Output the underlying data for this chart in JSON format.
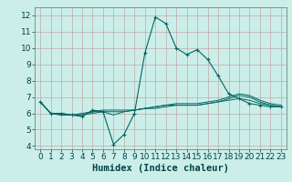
{
  "title": "",
  "xlabel": "Humidex (Indice chaleur)",
  "background_color": "#cceee8",
  "grid_color": "#c0a8a8",
  "line_color": "#006666",
  "xlim": [
    -0.5,
    23.5
  ],
  "ylim": [
    3.8,
    12.5
  ],
  "yticks": [
    4,
    5,
    6,
    7,
    8,
    9,
    10,
    11,
    12
  ],
  "xticks": [
    0,
    1,
    2,
    3,
    4,
    5,
    6,
    7,
    8,
    9,
    10,
    11,
    12,
    13,
    14,
    15,
    16,
    17,
    18,
    19,
    20,
    21,
    22,
    23
  ],
  "series": [
    [
      6.7,
      6.0,
      6.0,
      5.9,
      5.8,
      6.2,
      6.1,
      4.1,
      4.7,
      6.0,
      9.7,
      11.9,
      11.5,
      10.0,
      9.6,
      9.9,
      9.3,
      8.3,
      7.2,
      6.9,
      6.6,
      6.5,
      6.4,
      6.4
    ],
    [
      6.7,
      6.0,
      6.0,
      5.9,
      5.9,
      6.1,
      6.1,
      5.9,
      6.1,
      6.2,
      6.3,
      6.4,
      6.5,
      6.5,
      6.5,
      6.5,
      6.6,
      6.7,
      6.8,
      6.9,
      6.8,
      6.6,
      6.5,
      6.4
    ],
    [
      6.7,
      6.0,
      5.9,
      5.9,
      5.9,
      6.0,
      6.1,
      6.1,
      6.1,
      6.2,
      6.3,
      6.3,
      6.4,
      6.5,
      6.5,
      6.5,
      6.6,
      6.7,
      6.9,
      7.1,
      7.0,
      6.7,
      6.5,
      6.4
    ],
    [
      6.7,
      6.0,
      5.9,
      5.9,
      6.0,
      6.1,
      6.2,
      6.2,
      6.2,
      6.2,
      6.3,
      6.4,
      6.5,
      6.6,
      6.6,
      6.6,
      6.7,
      6.8,
      7.0,
      7.2,
      7.1,
      6.8,
      6.6,
      6.5
    ]
  ],
  "marker_series": 0,
  "font_size": 6.5,
  "xlabel_fontsize": 7.5
}
